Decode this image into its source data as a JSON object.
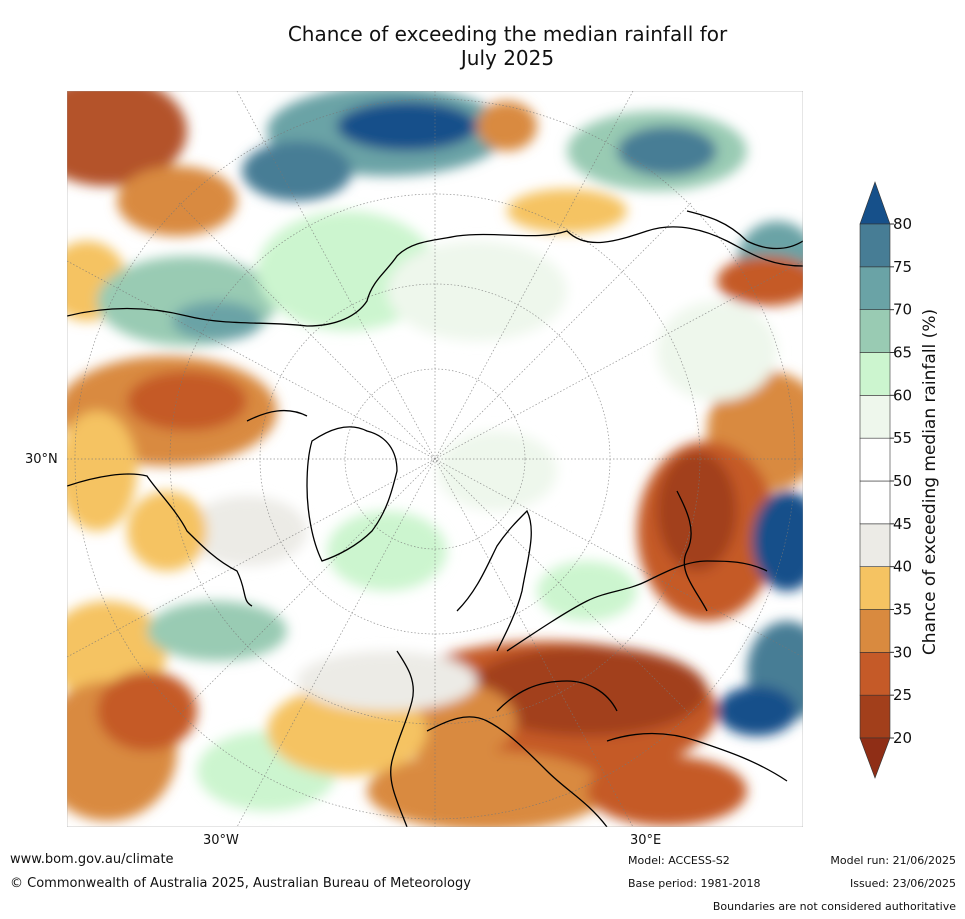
{
  "title_line1": "Chance of exceeding the median rainfall for",
  "title_line2": "July 2025",
  "axis_labels": {
    "lat_30n": "30°N",
    "lon_30w": "30°W",
    "lon_30e": "30°E"
  },
  "colorbar": {
    "label": "Chance of exceeding median rainfall (%)",
    "ticks": [
      "20",
      "25",
      "30",
      "35",
      "40",
      "45",
      "50",
      "55",
      "60",
      "65",
      "70",
      "75",
      "80"
    ],
    "bin_colors": [
      "#a23f1b",
      "#c55a28",
      "#d98a3f",
      "#f5c362",
      "#ecebe6",
      "#ffffff",
      "#ffffff",
      "#eef7ec",
      "#ccf5cf",
      "#99cbb3",
      "#6aa3a6",
      "#477d95"
    ],
    "under_color": "#8f2e16",
    "over_color": "#16508a"
  },
  "footer": {
    "url": "www.bom.gov.au/climate",
    "copyright": "© Commonwealth of Australia 2025, Australian Bureau of Meteorology",
    "model": "Model: ACCESS-S2",
    "base_period": "Base period: 1981-2018",
    "model_run": "Model run: 21/06/2025",
    "issued": "Issued: 23/06/2025",
    "disclaimer": "Boundaries are not considered authoritative"
  }
}
